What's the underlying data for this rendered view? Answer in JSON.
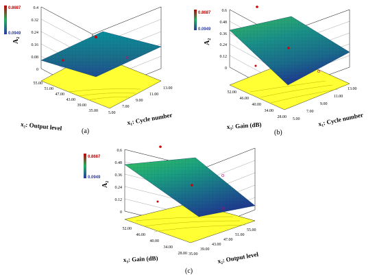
{
  "colors": {
    "surface_high": "#0b8fa0",
    "surface_mid": "#1a7a8a",
    "surface_low": "#1e3d8f",
    "surface_green": "#38c060",
    "floor": "#ffff33",
    "design_point": "#cc0000",
    "legend_high": "#c00000",
    "legend_low": "#2a3aa0"
  },
  "legend": {
    "high": "0.8687",
    "low": "0.0949"
  },
  "chart_data": [
    {
      "type": "surface",
      "caption": "(a)",
      "zlabel": "A₂",
      "z_ticks": [
        "0",
        "0.08",
        "0.16",
        "0.24",
        "0.32",
        "0.4"
      ],
      "zlim": [
        0,
        0.4
      ],
      "x1": {
        "label": "x₁: Cycle number",
        "ticks": [
          "5.00",
          "7.00",
          "9.00",
          "11.00",
          "13.00"
        ],
        "range": [
          5,
          13
        ]
      },
      "x2": {
        "label": "x₂: Output level",
        "ticks": [
          "35.00",
          "39.00",
          "43.00",
          "47.00",
          "51.00",
          "55.00"
        ],
        "range": [
          35,
          55
        ]
      },
      "surface_corners": {
        "x1min_x2min": 0.1,
        "x1max_x2min": 0.18,
        "x1min_x2max": 0.18,
        "x1max_x2max": 0.32
      }
    },
    {
      "type": "surface",
      "caption": "(b)",
      "zlabel": "A₂",
      "z_ticks": [
        "0",
        "0.12",
        "0.24",
        "0.36",
        "0.48",
        "0.6"
      ],
      "zlim": [
        0,
        0.6
      ],
      "x1": {
        "label": "x₁: Cycle number",
        "ticks": [
          "5.00",
          "7.00",
          "9.00",
          "11.00",
          "13.00"
        ],
        "range": [
          5,
          13
        ]
      },
      "x3": {
        "label": "x₃: Gain  (dB)",
        "ticks": [
          "28.00",
          "34.00",
          "40.00",
          "46.00",
          "52.00"
        ],
        "range": [
          28,
          52
        ]
      },
      "surface_corners": {
        "x1min_x3min": 0.02,
        "x1max_x3min": 0.1,
        "x1min_x3max": 0.38,
        "x1max_x3max": 0.52
      }
    },
    {
      "type": "surface",
      "caption": "(c)",
      "zlabel": "A₂",
      "z_ticks": [
        "0",
        "0.12",
        "0.24",
        "0.36",
        "0.48",
        "0.6"
      ],
      "zlim": [
        0,
        0.6
      ],
      "x2": {
        "label": "x₂: Output level",
        "ticks": [
          "35.00",
          "39.00",
          "43.00",
          "47.00",
          "51.00",
          "55.00"
        ],
        "range": [
          35,
          55
        ]
      },
      "x3": {
        "label": "x₃: Gain  (dB)",
        "ticks": [
          "28.00",
          "34.00",
          "40.00",
          "46.00",
          "52.00"
        ],
        "range": [
          28,
          52
        ]
      },
      "surface_corners": {
        "x2min_x3min": 0.04,
        "x2max_x3min": 0.08,
        "x2min_x3max": 0.44,
        "x2max_x3max": 0.5
      }
    }
  ]
}
